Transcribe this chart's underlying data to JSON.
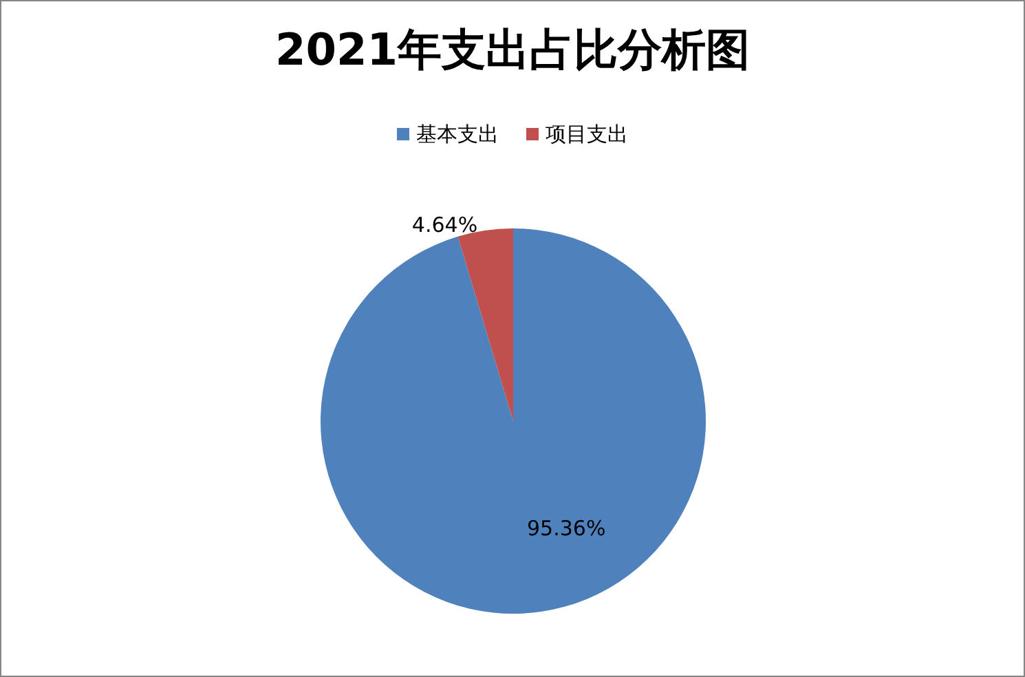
{
  "chart_data": {
    "type": "pie",
    "title": "2021年支出占比分析图",
    "categories": [
      "基本支出",
      "项目支出"
    ],
    "values": [
      95.36,
      4.64
    ],
    "colors": [
      "#4f81bd",
      "#c0504d"
    ],
    "value_labels": [
      "95.36%",
      "4.64%"
    ],
    "legend": "top"
  }
}
